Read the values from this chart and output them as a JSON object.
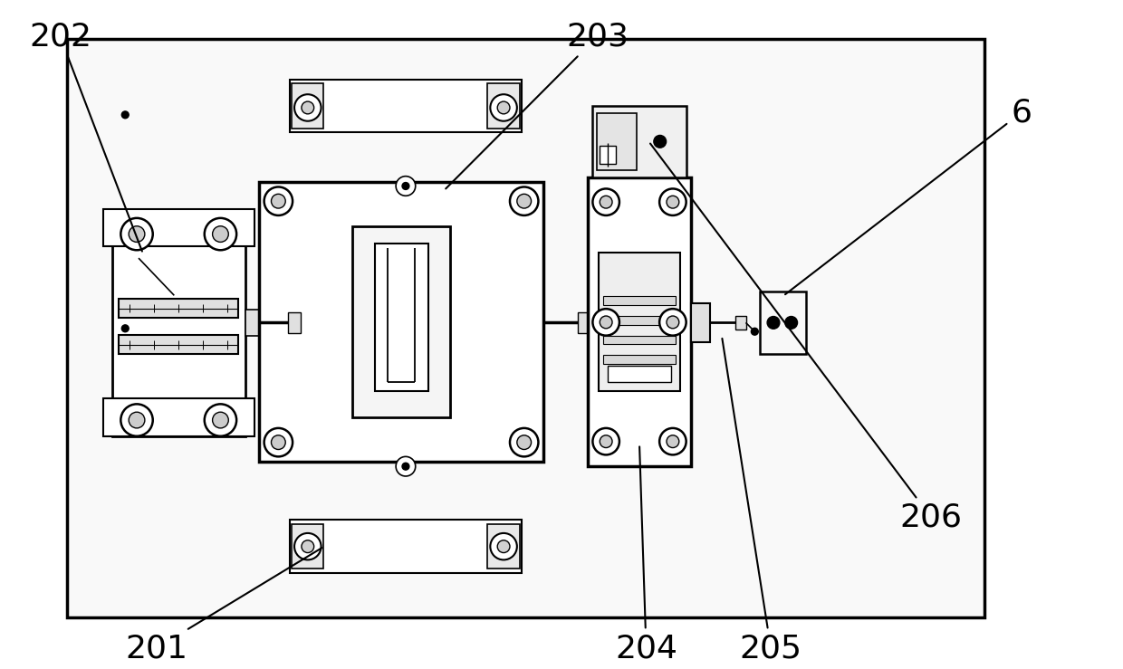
{
  "bg_color": "#ffffff",
  "line_color": "#000000",
  "fig_width": 12.4,
  "fig_height": 7.39,
  "dpi": 100,
  "label_fontsize": 26
}
